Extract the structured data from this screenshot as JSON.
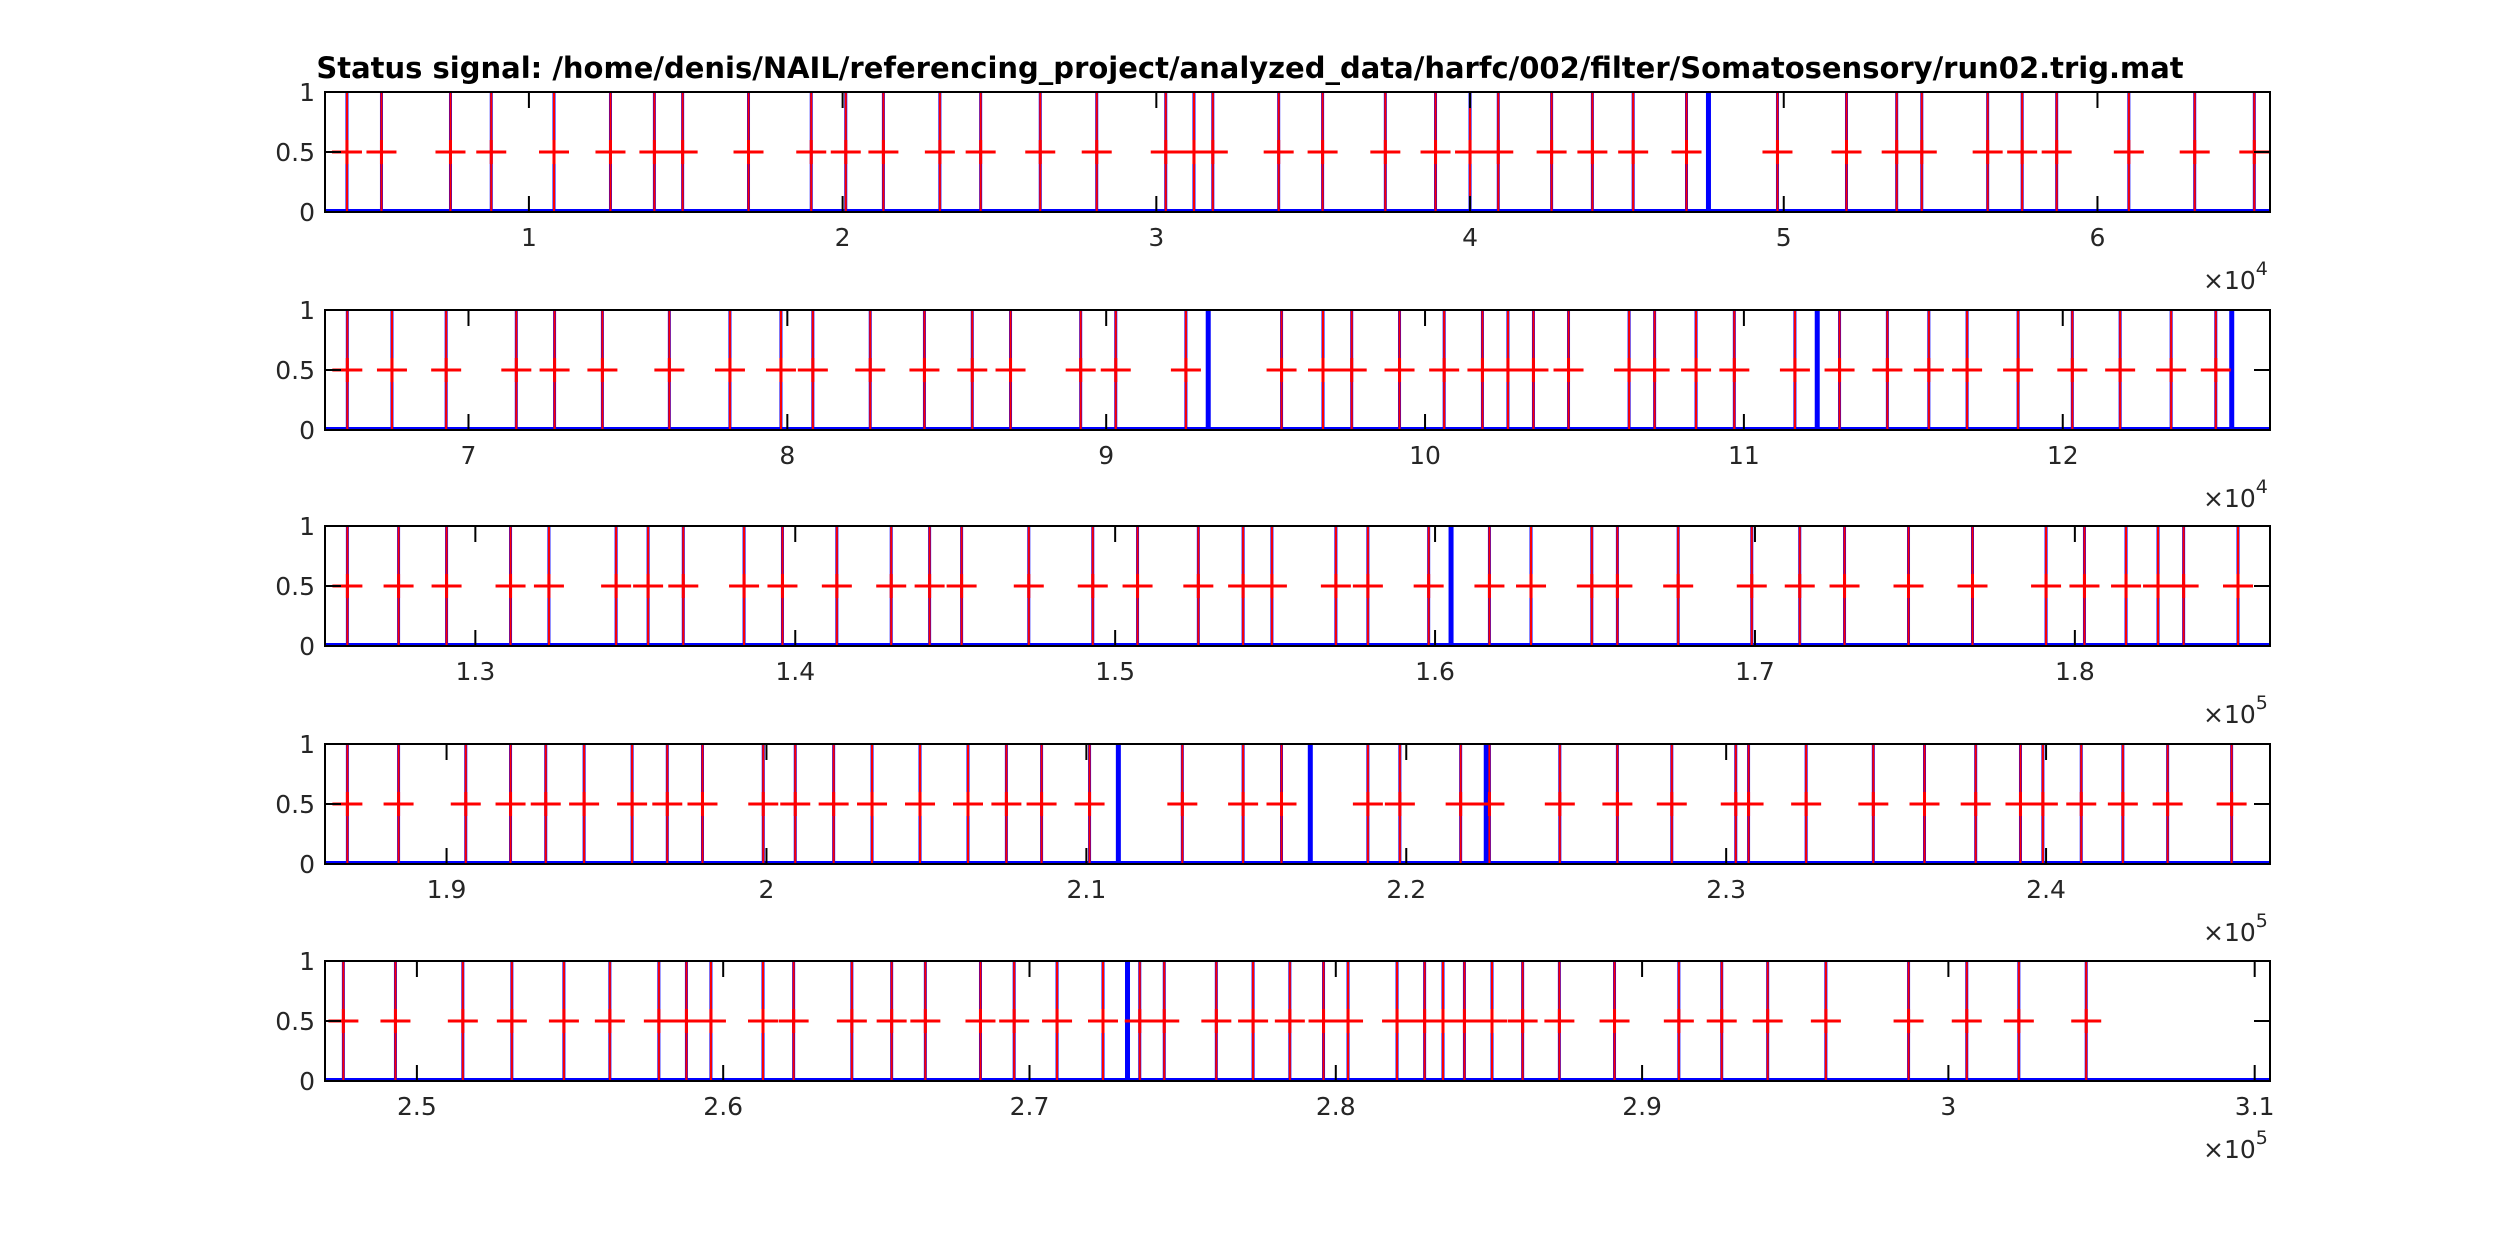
{
  "chart_data": {
    "type": "line",
    "title": "Status signal: /home/denis/NAIL/referencing_project/analyzed_data/harfc/002/filter/Somatosensory/run02.trig.mat",
    "series_colors": {
      "signal": "#0000ff",
      "marker": "#ff0000",
      "axes": "#000000"
    },
    "y_ticks": [
      {
        "v": 0,
        "label": "0"
      },
      {
        "v": 0.5,
        "label": "0.5"
      },
      {
        "v": 1,
        "label": "1"
      }
    ],
    "ylim": [
      0,
      1
    ],
    "grid": false,
    "panels": [
      {
        "xlim": [
          3500,
          65500
        ],
        "x_ticks": [
          {
            "v": 10000,
            "label": "1"
          },
          {
            "v": 20000,
            "label": "2"
          },
          {
            "v": 30000,
            "label": "3"
          },
          {
            "v": 40000,
            "label": "4"
          },
          {
            "v": 50000,
            "label": "5"
          },
          {
            "v": 60000,
            "label": "6"
          }
        ],
        "exponent_base": "×10",
        "exponent_power": "4",
        "marked_pulses": [
          4200,
          5300,
          7500,
          8800,
          10800,
          12600,
          14000,
          14900,
          17000,
          19000,
          20100,
          21300,
          23100,
          24400,
          26300,
          28100,
          30300,
          31200,
          31800,
          33900,
          35300,
          37300,
          38900,
          40000,
          40900,
          42600,
          43900,
          45200,
          46900,
          49800,
          52000,
          53600,
          54400,
          56500,
          57600,
          58700,
          61000,
          63100,
          65000
        ],
        "unmarked_pulses": [
          47600
        ]
      },
      {
        "xlim": [
          65500,
          126500
        ],
        "x_ticks": [
          {
            "v": 70000,
            "label": "7"
          },
          {
            "v": 80000,
            "label": "8"
          },
          {
            "v": 90000,
            "label": "9"
          },
          {
            "v": 100000,
            "label": "10"
          },
          {
            "v": 110000,
            "label": "11"
          },
          {
            "v": 120000,
            "label": "12"
          }
        ],
        "exponent_base": "×10",
        "exponent_power": "4",
        "marked_pulses": [
          66200,
          67600,
          69300,
          71500,
          72700,
          74200,
          76300,
          78200,
          79800,
          80800,
          82600,
          84300,
          85800,
          87000,
          89200,
          90300,
          92500,
          95500,
          96800,
          97700,
          99200,
          100600,
          101800,
          102600,
          103400,
          104500,
          106400,
          107200,
          108500,
          109700,
          111600,
          113000,
          114500,
          115800,
          117000,
          118600,
          120300,
          121800,
          123400,
          124800
        ],
        "unmarked_pulses": [
          93200,
          112300,
          125300
        ]
      },
      {
        "xlim": [
          125300,
          186100
        ],
        "x_ticks": [
          {
            "v": 130000,
            "label": "1.3"
          },
          {
            "v": 140000,
            "label": "1.4"
          },
          {
            "v": 150000,
            "label": "1.5"
          },
          {
            "v": 160000,
            "label": "1.6"
          },
          {
            "v": 170000,
            "label": "1.7"
          },
          {
            "v": 180000,
            "label": "1.8"
          }
        ],
        "exponent_base": "×10",
        "exponent_power": "5",
        "marked_pulses": [
          126000,
          127600,
          129100,
          131100,
          132300,
          134400,
          135400,
          136500,
          138400,
          139600,
          141300,
          143000,
          144200,
          145200,
          147300,
          149300,
          150700,
          152600,
          154000,
          154900,
          156900,
          157900,
          159800,
          161700,
          163000,
          164900,
          165700,
          167600,
          169900,
          171400,
          172800,
          174800,
          176800,
          179100,
          180300,
          181600,
          182600,
          183400,
          185100
        ],
        "unmarked_pulses": [
          160500
        ]
      },
      {
        "xlim": [
          186200,
          247000
        ],
        "x_ticks": [
          {
            "v": 190000,
            "label": "1.9"
          },
          {
            "v": 200000,
            "label": "2"
          },
          {
            "v": 210000,
            "label": "2.1"
          },
          {
            "v": 220000,
            "label": "2.2"
          },
          {
            "v": 230000,
            "label": "2.3"
          },
          {
            "v": 240000,
            "label": "2.4"
          }
        ],
        "exponent_base": "×10",
        "exponent_power": "5",
        "marked_pulses": [
          186900,
          188500,
          190600,
          192000,
          193100,
          194300,
          195800,
          196900,
          198000,
          199900,
          200900,
          202100,
          203300,
          204800,
          206300,
          207500,
          208600,
          210100,
          213000,
          214900,
          216100,
          218800,
          219800,
          221700,
          222600,
          224800,
          226600,
          228300,
          230300,
          230700,
          232500,
          234600,
          236200,
          237800,
          239200,
          239900,
          241100,
          242400,
          243800,
          245800
        ],
        "unmarked_pulses": [
          211000,
          217000,
          222500
        ]
      },
      {
        "xlim": [
          247000,
          310500
        ],
        "x_ticks": [
          {
            "v": 250000,
            "label": "2.5"
          },
          {
            "v": 260000,
            "label": "2.6"
          },
          {
            "v": 270000,
            "label": "2.7"
          },
          {
            "v": 280000,
            "label": "2.8"
          },
          {
            "v": 290000,
            "label": "2.9"
          },
          {
            "v": 300000,
            "label": "3"
          },
          {
            "v": 310000,
            "label": "3.1"
          }
        ],
        "exponent_base": "×10",
        "exponent_power": "5",
        "marked_pulses": [
          247600,
          249300,
          251500,
          253100,
          254800,
          256300,
          257900,
          258800,
          259600,
          261300,
          262300,
          264200,
          265500,
          266600,
          268400,
          269500,
          270900,
          272400,
          273600,
          274400,
          276100,
          277300,
          278500,
          279600,
          280400,
          282000,
          282900,
          283500,
          284200,
          285100,
          286100,
          287300,
          289100,
          291200,
          292600,
          294100,
          296000,
          298700,
          300600,
          302300,
          304500
        ],
        "unmarked_pulses": [
          273200
        ]
      }
    ]
  }
}
